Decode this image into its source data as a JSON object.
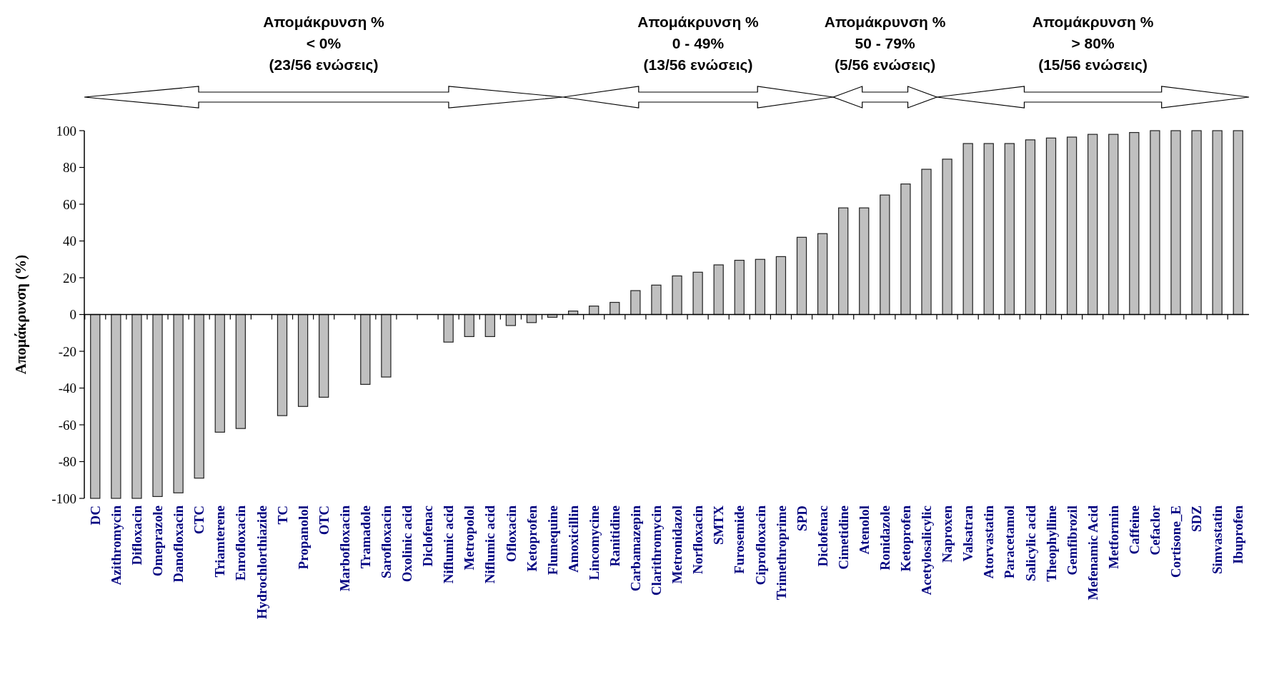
{
  "chart_data": {
    "type": "bar",
    "ylabel": "Απομάκρυνση (%)",
    "categories": [
      "DC",
      "Azithromycin",
      "Difloxacin",
      "Omeprazole",
      "Danofloxacin",
      "CTC",
      "Triamterene",
      "Enrofloxacin",
      "Hydrochlorthiazide",
      "TC",
      "Propanolol",
      "OTC",
      "Marbofloxacin",
      "Tramadole",
      "Sarofloxacin",
      "Oxolinic acid",
      "Diclofenac",
      "Niflumic acid",
      "Metropolol",
      "Niflumic acid",
      "Ofloxacin",
      "Ketoprofen",
      "Flumequine",
      "Amoxicillin",
      "Lincomycine",
      "Ranitidine",
      "Carbamazepin",
      "Clarithromycin",
      "Metronidazol",
      "Norfloxacin",
      "SMTX",
      "Furosemide",
      "Ciprofloxacin",
      "Trimethroprime",
      "SPD",
      "Diclofenac",
      "Cimetidine",
      "Atenolol",
      "Ronidazole",
      "Ketoprofen",
      "Acetylosalicylic",
      "Naproxen",
      "Valsatran",
      "Atorvastatin",
      "Paracetamol",
      "Salicylic acid",
      "Theophylline",
      "Gemfibrozil",
      "Mefenamic Acid",
      "Metformin",
      "Caffeine",
      "Cefaclor",
      "Cortisone_E",
      "SDZ",
      "Simvastatin",
      "Ibuprofen"
    ],
    "values": [
      -100,
      -100,
      -100,
      -99,
      -97,
      -89,
      -64,
      -62,
      null,
      -55,
      -50,
      -45,
      null,
      -38,
      -34,
      null,
      null,
      -15,
      -12,
      -12,
      -6,
      -4.4,
      -1.5,
      1.9,
      4.6,
      6.6,
      13,
      16,
      21,
      23,
      27,
      29.5,
      30,
      31.5,
      42,
      44,
      58,
      58,
      65,
      71,
      79,
      84.5,
      93,
      93,
      93,
      95,
      96,
      96.5,
      98,
      98,
      99,
      100,
      100,
      100,
      100,
      100
    ],
    "color": "#c0c0c0",
    "ylim": [
      -100,
      100
    ],
    "yticks": [
      -100,
      -80,
      -60,
      -40,
      -20,
      0,
      20,
      40,
      60,
      80,
      100
    ],
    "annotations": [
      "Απομάκρυνση %\n< 0%\n(23/56 ενώσεις)",
      "Απομάκρυνση %\n0 - 49%\n(13/56 ενώσεις)",
      "Απομάκρυνση %\n50 - 79%\n(5/56 ενώσεις)",
      "Απομάκρυνση %\n> 80%\n(15/56 ενώσεις)"
    ]
  }
}
